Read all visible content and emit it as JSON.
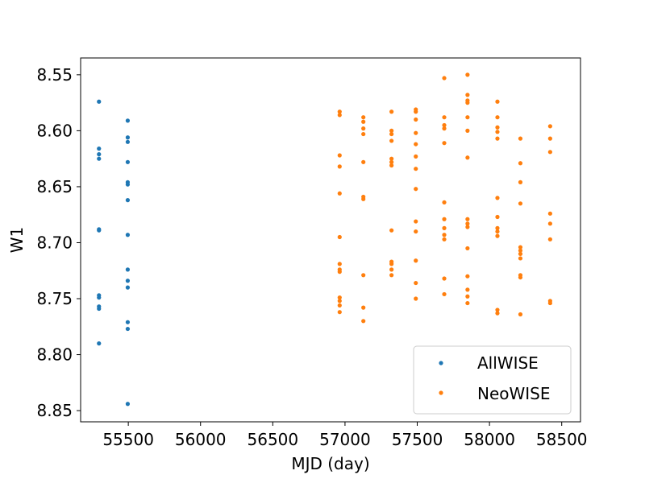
{
  "chart_data": {
    "type": "scatter",
    "xlabel": "MJD (day)",
    "ylabel": "W1",
    "xlim": [
      55170,
      58630
    ],
    "ylim": [
      8.86,
      8.535
    ],
    "y_inverted": true,
    "grid": false,
    "legend_position": "lower-right",
    "xticks": [
      {
        "value": 55500,
        "label": "55500"
      },
      {
        "value": 56000,
        "label": "56000"
      },
      {
        "value": 56500,
        "label": "56500"
      },
      {
        "value": 57000,
        "label": "57000"
      },
      {
        "value": 57500,
        "label": "57500"
      },
      {
        "value": 58000,
        "label": "58000"
      },
      {
        "value": 58500,
        "label": "58500"
      }
    ],
    "yticks": [
      {
        "value": 8.55,
        "label": "8.55"
      },
      {
        "value": 8.6,
        "label": "8.60"
      },
      {
        "value": 8.65,
        "label": "8.65"
      },
      {
        "value": 8.7,
        "label": "8.70"
      },
      {
        "value": 8.75,
        "label": "8.75"
      },
      {
        "value": 8.8,
        "label": "8.80"
      },
      {
        "value": 8.85,
        "label": "8.85"
      }
    ],
    "series": [
      {
        "name": "AllWISE",
        "color": "#1f77b4",
        "points": [
          [
            55297,
            8.574
          ],
          [
            55297,
            8.616
          ],
          [
            55297,
            8.621
          ],
          [
            55297,
            8.625
          ],
          [
            55297,
            8.688
          ],
          [
            55297,
            8.689
          ],
          [
            55297,
            8.747
          ],
          [
            55297,
            8.749
          ],
          [
            55297,
            8.757
          ],
          [
            55297,
            8.759
          ],
          [
            55297,
            8.79
          ],
          [
            55496,
            8.591
          ],
          [
            55496,
            8.606
          ],
          [
            55496,
            8.61
          ],
          [
            55496,
            8.628
          ],
          [
            55496,
            8.646
          ],
          [
            55496,
            8.648
          ],
          [
            55496,
            8.662
          ],
          [
            55496,
            8.693
          ],
          [
            55496,
            8.724
          ],
          [
            55496,
            8.734
          ],
          [
            55496,
            8.74
          ],
          [
            55496,
            8.771
          ],
          [
            55496,
            8.777
          ],
          [
            55496,
            8.844
          ]
        ]
      },
      {
        "name": "NeoWISE",
        "color": "#ff7f0e",
        "points": [
          [
            56963,
            8.583
          ],
          [
            56963,
            8.586
          ],
          [
            56963,
            8.622
          ],
          [
            56963,
            8.632
          ],
          [
            56963,
            8.656
          ],
          [
            56963,
            8.695
          ],
          [
            56963,
            8.719
          ],
          [
            56963,
            8.724
          ],
          [
            56963,
            8.726
          ],
          [
            56963,
            8.749
          ],
          [
            56963,
            8.752
          ],
          [
            56963,
            8.756
          ],
          [
            56963,
            8.762
          ],
          [
            57127,
            8.588
          ],
          [
            57127,
            8.592
          ],
          [
            57127,
            8.598
          ],
          [
            57127,
            8.603
          ],
          [
            57127,
            8.628
          ],
          [
            57127,
            8.659
          ],
          [
            57127,
            8.661
          ],
          [
            57127,
            8.729
          ],
          [
            57127,
            8.758
          ],
          [
            57127,
            8.77
          ],
          [
            57322,
            8.583
          ],
          [
            57322,
            8.6
          ],
          [
            57322,
            8.603
          ],
          [
            57322,
            8.609
          ],
          [
            57322,
            8.625
          ],
          [
            57322,
            8.628
          ],
          [
            57322,
            8.631
          ],
          [
            57322,
            8.689
          ],
          [
            57322,
            8.717
          ],
          [
            57322,
            8.719
          ],
          [
            57322,
            8.724
          ],
          [
            57322,
            8.729
          ],
          [
            57490,
            8.581
          ],
          [
            57490,
            8.583
          ],
          [
            57490,
            8.59
          ],
          [
            57490,
            8.602
          ],
          [
            57490,
            8.612
          ],
          [
            57490,
            8.623
          ],
          [
            57490,
            8.634
          ],
          [
            57490,
            8.652
          ],
          [
            57490,
            8.681
          ],
          [
            57490,
            8.69
          ],
          [
            57490,
            8.716
          ],
          [
            57490,
            8.736
          ],
          [
            57490,
            8.75
          ],
          [
            57687,
            8.553
          ],
          [
            57687,
            8.588
          ],
          [
            57687,
            8.595
          ],
          [
            57687,
            8.598
          ],
          [
            57687,
            8.611
          ],
          [
            57687,
            8.664
          ],
          [
            57687,
            8.679
          ],
          [
            57687,
            8.687
          ],
          [
            57687,
            8.693
          ],
          [
            57687,
            8.697
          ],
          [
            57687,
            8.732
          ],
          [
            57687,
            8.746
          ],
          [
            57848,
            8.55
          ],
          [
            57848,
            8.568
          ],
          [
            57848,
            8.573
          ],
          [
            57848,
            8.575
          ],
          [
            57848,
            8.588
          ],
          [
            57848,
            8.6
          ],
          [
            57848,
            8.624
          ],
          [
            57848,
            8.679
          ],
          [
            57848,
            8.683
          ],
          [
            57848,
            8.686
          ],
          [
            57848,
            8.705
          ],
          [
            57848,
            8.73
          ],
          [
            57848,
            8.742
          ],
          [
            57848,
            8.748
          ],
          [
            57848,
            8.754
          ],
          [
            58055,
            8.574
          ],
          [
            58055,
            8.588
          ],
          [
            58055,
            8.597
          ],
          [
            58055,
            8.601
          ],
          [
            58055,
            8.607
          ],
          [
            58055,
            8.66
          ],
          [
            58055,
            8.677
          ],
          [
            58055,
            8.687
          ],
          [
            58055,
            8.69
          ],
          [
            58055,
            8.694
          ],
          [
            58055,
            8.76
          ],
          [
            58055,
            8.763
          ],
          [
            58214,
            8.607
          ],
          [
            58214,
            8.629
          ],
          [
            58214,
            8.646
          ],
          [
            58214,
            8.665
          ],
          [
            58214,
            8.704
          ],
          [
            58214,
            8.707
          ],
          [
            58214,
            8.71
          ],
          [
            58214,
            8.714
          ],
          [
            58214,
            8.729
          ],
          [
            58214,
            8.731
          ],
          [
            58214,
            8.764
          ],
          [
            58420,
            8.596
          ],
          [
            58420,
            8.607
          ],
          [
            58420,
            8.619
          ],
          [
            58420,
            8.674
          ],
          [
            58420,
            8.683
          ],
          [
            58420,
            8.697
          ],
          [
            58420,
            8.752
          ],
          [
            58420,
            8.754
          ]
        ]
      }
    ]
  }
}
